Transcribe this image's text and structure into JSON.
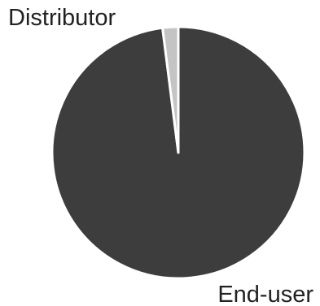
{
  "chart_data": {
    "type": "pie",
    "title": "",
    "categories": [
      "End-user",
      "Distributor"
    ],
    "values": [
      98,
      2
    ],
    "colors": [
      "#3d3d3d",
      "#c4c4c4"
    ],
    "start_angle_deg": 0,
    "direction": "clockwise",
    "legend": "none",
    "slice_border_color": "#ffffff"
  }
}
